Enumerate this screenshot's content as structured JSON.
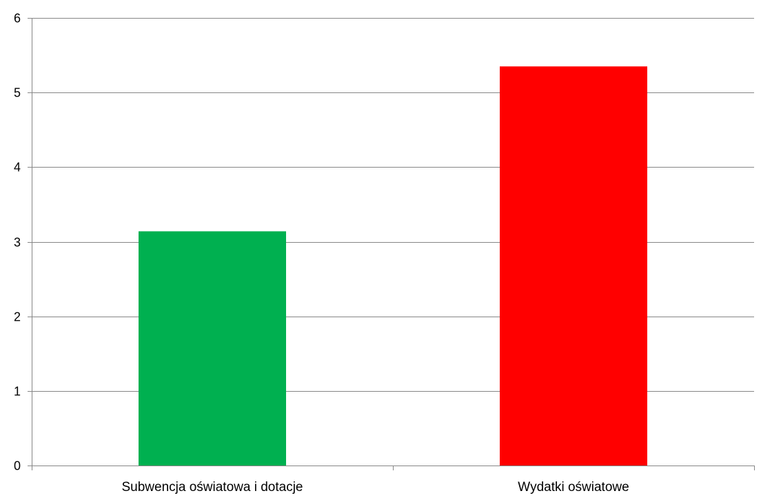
{
  "chart_data": {
    "type": "bar",
    "title": "",
    "xlabel": "",
    "ylabel": "",
    "categories": [
      "Subwencja oświatowa i dotacje",
      "Wydatki oświatowe"
    ],
    "values": [
      3.14,
      5.35
    ],
    "colors": [
      "#00b050",
      "#ff0000"
    ],
    "ylim": [
      0,
      6
    ],
    "yticks": [
      "0",
      "1",
      "2",
      "3",
      "4",
      "5",
      "6"
    ],
    "grid": true,
    "gridline_color": "#868686",
    "legend": "none"
  }
}
